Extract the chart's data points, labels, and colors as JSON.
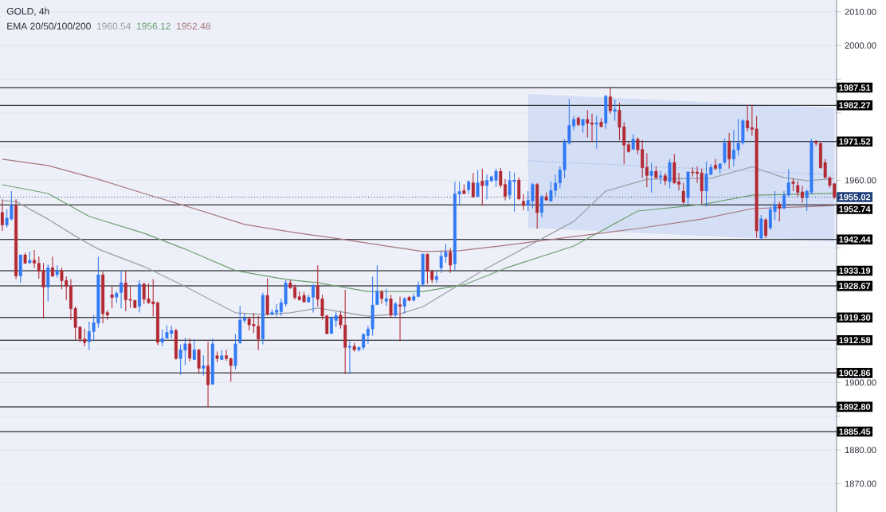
{
  "chart_data": {
    "type": "candlestick",
    "title": "GOLD, 4h",
    "subtitle": "EMA 20/50/100/200",
    "categories": [
      null,
      null,
      null,
      null,
      null,
      null,
      null,
      null,
      null,
      null,
      null,
      null,
      null,
      null,
      null,
      null,
      null,
      null,
      null,
      null,
      null,
      null,
      null,
      null,
      null,
      null,
      null,
      null,
      null,
      null,
      null,
      null,
      null,
      null,
      null,
      null,
      null,
      null,
      null,
      null,
      null,
      null,
      null,
      null,
      null,
      null,
      null,
      null,
      null,
      null,
      null,
      null,
      null,
      null,
      null,
      null,
      null,
      null,
      null,
      null,
      null,
      null,
      null,
      null,
      null,
      null,
      null,
      null,
      null,
      null,
      null,
      null,
      null,
      null,
      null,
      null,
      null,
      null,
      null,
      null,
      null,
      null,
      null,
      null,
      null,
      null,
      null,
      null,
      null,
      null,
      null,
      null,
      null,
      null,
      null,
      null,
      null,
      null,
      null,
      null,
      null,
      null,
      null,
      null,
      null,
      null,
      null,
      null,
      null,
      null,
      null,
      null,
      null,
      null,
      null,
      null,
      null,
      null,
      null,
      null,
      null,
      null,
      null,
      null,
      null,
      null,
      null,
      null,
      null,
      null,
      null,
      null,
      null,
      null,
      null,
      null,
      null,
      null,
      null,
      null,
      null,
      null,
      null,
      null,
      null,
      null,
      null,
      null,
      null,
      null,
      null,
      null,
      null,
      null,
      null,
      null,
      null,
      null,
      null,
      null,
      null,
      null,
      null,
      null,
      null,
      null,
      null,
      null,
      null,
      null,
      null,
      null,
      null,
      null,
      null,
      null,
      null,
      null,
      null,
      null,
      null,
      null,
      null
    ],
    "ohlc": [
      [
        1950.5,
        1954.4,
        1945,
        1946.7
      ],
      [
        1946.7,
        1951.4,
        1946,
        1948.8
      ],
      [
        1948.5,
        1956.8,
        1948.1,
        1952.5
      ],
      [
        1952.5,
        1954.4,
        1930.7,
        1931.6
      ],
      [
        1931.6,
        1938,
        1929.5,
        1937.9
      ],
      [
        1937.9,
        1938.5,
        1935.2,
        1935.4
      ],
      [
        1935.5,
        1938.9,
        1935.2,
        1936.3
      ],
      [
        1936.3,
        1939.3,
        1934,
        1935.4
      ],
      [
        1935.4,
        1937.4,
        1930.8,
        1933
      ],
      [
        1933.2,
        1935.5,
        1919,
        1928.3
      ],
      [
        1928.3,
        1935.1,
        1924.1,
        1934.1
      ],
      [
        1934.1,
        1937.3,
        1931.5,
        1931.5
      ],
      [
        1932,
        1934.8,
        1931.2,
        1933.2
      ],
      [
        1933.2,
        1934.1,
        1927.7,
        1930.2
      ],
      [
        1930.3,
        1931.5,
        1924.5,
        1928.5
      ],
      [
        1928.6,
        1930.7,
        1918.6,
        1921.9
      ],
      [
        1922,
        1922.6,
        1912.6,
        1916.3
      ],
      [
        1916.5,
        1916.7,
        1912,
        1912.9
      ],
      [
        1912.9,
        1916,
        1910.8,
        1911.8
      ],
      [
        1912.1,
        1918.1,
        1909.7,
        1915.2
      ],
      [
        1915.1,
        1920,
        1912.3,
        1917.8
      ],
      [
        1917.6,
        1937.3,
        1916.3,
        1932
      ],
      [
        1932,
        1933,
        1917.6,
        1920.4
      ],
      [
        1920.8,
        1921.5,
        1918.6,
        1920
      ],
      [
        1926.1,
        1928.5,
        1922,
        1925.2
      ],
      [
        1925.3,
        1927.1,
        1923.6,
        1926.5
      ],
      [
        1926.7,
        1933.2,
        1922,
        1929.6
      ],
      [
        1929.6,
        1933.2,
        1921.2,
        1924.5
      ],
      [
        1924.7,
        1928.5,
        1922.2,
        1924.4
      ],
      [
        1924.4,
        1924.5,
        1922,
        1922.2
      ],
      [
        1922.6,
        1930.4,
        1920.8,
        1929.2
      ],
      [
        1929.3,
        1929.6,
        1923.3,
        1924.7
      ],
      [
        1924.9,
        1929.4,
        1923.3,
        1923.7
      ],
      [
        1924,
        1930.7,
        1919.6,
        1923.3
      ],
      [
        1923.7,
        1924.1,
        1911.1,
        1911.9
      ],
      [
        1911.9,
        1915.7,
        1910.8,
        1913.1
      ],
      [
        1913.1,
        1917,
        1913.1,
        1914.9
      ],
      [
        1914.5,
        1916.8,
        1913.1,
        1915.5
      ],
      [
        1915.5,
        1916,
        1906.8,
        1907.1
      ],
      [
        1907.1,
        1911.3,
        1902.3,
        1909.7
      ],
      [
        1909.6,
        1913.3,
        1905.2,
        1911.5
      ],
      [
        1911.5,
        1913.1,
        1906.3,
        1907.2
      ],
      [
        1906.8,
        1912.9,
        1906.8,
        1909.7
      ],
      [
        1909.7,
        1910,
        1902.5,
        1904.2
      ],
      [
        1904.2,
        1908.1,
        1902.1,
        1905
      ],
      [
        1905,
        1912.1,
        1892.8,
        1899.3
      ],
      [
        1899.5,
        1913.1,
        1899.3,
        1911.5
      ],
      [
        1908,
        1909.2,
        1906,
        1907.1
      ],
      [
        1906.8,
        1909.6,
        1906.8,
        1908
      ],
      [
        1908,
        1909.7,
        1906.4,
        1907.1
      ],
      [
        1907.1,
        1907.4,
        1900.3,
        1905
      ],
      [
        1905,
        1914.4,
        1903.9,
        1911.5
      ],
      [
        1911.8,
        1922.8,
        1911.5,
        1918.6
      ],
      [
        1918.4,
        1920.4,
        1917.6,
        1919.2
      ],
      [
        1918.9,
        1919.6,
        1915.5,
        1917.1
      ],
      [
        1917.3,
        1920.6,
        1914.7,
        1916.8
      ],
      [
        1916.7,
        1919.8,
        1909.7,
        1912.9
      ],
      [
        1912.9,
        1926.7,
        1911.3,
        1925.9
      ],
      [
        1925.9,
        1931,
        1919.9,
        1920.2
      ],
      [
        1920.2,
        1921.8,
        1920,
        1920.8
      ],
      [
        1920.8,
        1923.3,
        1919.6,
        1921.5
      ],
      [
        1921,
        1924.9,
        1919.8,
        1923.7
      ],
      [
        1923.3,
        1930.4,
        1922.6,
        1929.6
      ],
      [
        1929.6,
        1930.4,
        1927.8,
        1928.1
      ],
      [
        1928.3,
        1929.1,
        1924.7,
        1925.2
      ],
      [
        1925.5,
        1927.1,
        1924.4,
        1924.5
      ],
      [
        1925.9,
        1926.9,
        1923.7,
        1923.9
      ],
      [
        1923.9,
        1926.1,
        1923.7,
        1925.3
      ],
      [
        1925.3,
        1929.1,
        1920.8,
        1928.9
      ],
      [
        1928.9,
        1934.8,
        1922.6,
        1924.7
      ],
      [
        1924.9,
        1926.1,
        1918.6,
        1919.7
      ],
      [
        1919.8,
        1920.2,
        1914.3,
        1914.5
      ],
      [
        1914.5,
        1919.6,
        1914.5,
        1919.4
      ],
      [
        1918.4,
        1921,
        1916.5,
        1919.9
      ],
      [
        1920,
        1921.2,
        1916,
        1917.1
      ],
      [
        1917.1,
        1927.5,
        1902.5,
        1910.4
      ],
      [
        1910.4,
        1912.3,
        1902.6,
        1910.8
      ],
      [
        1910.8,
        1911.8,
        1909.2,
        1909.7
      ],
      [
        1909.7,
        1910.8,
        1909.2,
        1910.4
      ],
      [
        1910.4,
        1914.7,
        1909.6,
        1914.3
      ],
      [
        1913.9,
        1916.8,
        1911.5,
        1915.9
      ],
      [
        1915.9,
        1931.4,
        1913.9,
        1923
      ],
      [
        1923.1,
        1934.8,
        1923,
        1927.1
      ],
      [
        1926.9,
        1927.5,
        1923.4,
        1924.9
      ],
      [
        1924.1,
        1927.8,
        1922.8,
        1924.9
      ],
      [
        1924.9,
        1926.1,
        1919.2,
        1920
      ],
      [
        1920,
        1923.9,
        1919.2,
        1923.4
      ],
      [
        1923.1,
        1925.5,
        1912.3,
        1922.6
      ],
      [
        1922.6,
        1925.3,
        1920.4,
        1924.9
      ],
      [
        1925.3,
        1925.7,
        1924.1,
        1924.4
      ],
      [
        1924.4,
        1926.5,
        1924.1,
        1925.5
      ],
      [
        1925.5,
        1930,
        1925.3,
        1928.9
      ],
      [
        1929.1,
        1938.3,
        1928.6,
        1938.1
      ],
      [
        1938.1,
        1938.3,
        1929.3,
        1933
      ],
      [
        1933,
        1933.5,
        1929.5,
        1930.5
      ],
      [
        1930.5,
        1933,
        1929.5,
        1931.5
      ],
      [
        1934,
        1939.1,
        1932.5,
        1937.5
      ],
      [
        1937.3,
        1941.1,
        1935.6,
        1938.7
      ],
      [
        1938.7,
        1939.9,
        1932.5,
        1934.8
      ],
      [
        1935.2,
        1959.6,
        1933.2,
        1956
      ],
      [
        1955.9,
        1959.6,
        1952.5,
        1956.7
      ],
      [
        1957,
        1958.8,
        1955.9,
        1956
      ],
      [
        1957.2,
        1960,
        1955.9,
        1959.6
      ],
      [
        1959.3,
        1962.2,
        1954.8,
        1955.1
      ],
      [
        1955.2,
        1963,
        1955.1,
        1959.3
      ],
      [
        1959.8,
        1963.5,
        1952.5,
        1958.4
      ],
      [
        1958.4,
        1961.7,
        1954.3,
        1960
      ],
      [
        1959.8,
        1961.4,
        1959.6,
        1961.1
      ],
      [
        1960,
        1963.5,
        1958,
        1962.7
      ],
      [
        1962.7,
        1963.7,
        1957.8,
        1958.5
      ],
      [
        1958.8,
        1960.4,
        1954.1,
        1955.2
      ],
      [
        1955.6,
        1962.7,
        1954.3,
        1960
      ],
      [
        1959.6,
        1962.3,
        1950.7,
        1960.1
      ],
      [
        1960.1,
        1960.9,
        1954.1,
        1954.5
      ],
      [
        1953.8,
        1955.9,
        1951.1,
        1952.5
      ],
      [
        1952.5,
        1956.8,
        1950.9,
        1954.1
      ],
      [
        1953.8,
        1959.2,
        1951.7,
        1958.8
      ],
      [
        1958.8,
        1959.2,
        1945.6,
        1950.4
      ],
      [
        1950.4,
        1955.6,
        1949,
        1955.2
      ],
      [
        1955.2,
        1956.4,
        1954.1,
        1954.1
      ],
      [
        1953.8,
        1959.6,
        1953.7,
        1957
      ],
      [
        1957,
        1961.7,
        1955.2,
        1959.2
      ],
      [
        1959.2,
        1964.1,
        1957.6,
        1963.1
      ],
      [
        1963.1,
        1972.2,
        1960.7,
        1971.4
      ],
      [
        1971,
        1984.2,
        1970.6,
        1976.3
      ],
      [
        1976.1,
        1979,
        1974.9,
        1978.1
      ],
      [
        1978.5,
        1978.9,
        1976.1,
        1976.5
      ],
      [
        1976.3,
        1978.2,
        1974.1,
        1978.1
      ],
      [
        1978.1,
        1980.8,
        1972.7,
        1976.9
      ],
      [
        1977.1,
        1979.8,
        1971.4,
        1976.6
      ],
      [
        1976.6,
        1979.2,
        1969.4,
        1977.1
      ],
      [
        1977.3,
        1978.5,
        1975.7,
        1975.9
      ],
      [
        1976.9,
        1985.3,
        1975.3,
        1985
      ],
      [
        1984.8,
        1987.5,
        1979.8,
        1980.6
      ],
      [
        1980.4,
        1984,
        1977.7,
        1981
      ],
      [
        1980.8,
        1983,
        1971.9,
        1975.7
      ],
      [
        1975.9,
        1977.3,
        1964.8,
        1970.4
      ],
      [
        1970.6,
        1971.4,
        1968.2,
        1968.5
      ],
      [
        1969.2,
        1973.7,
        1969,
        1972.2
      ],
      [
        1972.2,
        1972.7,
        1967.7,
        1969
      ],
      [
        1969.2,
        1971.9,
        1960.7,
        1963.7
      ],
      [
        1963.9,
        1968,
        1958,
        1961.4
      ],
      [
        1961.4,
        1965.2,
        1956.4,
        1962.7
      ],
      [
        1962.7,
        1964.1,
        1960.6,
        1960.7
      ],
      [
        1960.9,
        1962.7,
        1958.8,
        1961.4
      ],
      [
        1961.4,
        1962.2,
        1958.5,
        1959.8
      ],
      [
        1959.6,
        1966.3,
        1957.6,
        1965.3
      ],
      [
        1965.3,
        1967.8,
        1959,
        1959.2
      ],
      [
        1959.6,
        1962.2,
        1957,
        1958.8
      ],
      [
        1956.8,
        1959.2,
        1953,
        1953.5
      ],
      [
        1954.8,
        1962.7,
        1952.9,
        1962.5
      ],
      [
        1962.5,
        1963.9,
        1961.1,
        1962.2
      ],
      [
        1962.5,
        1964.1,
        1959.2,
        1962
      ],
      [
        1962.2,
        1963.5,
        1952.9,
        1956.8
      ],
      [
        1956.8,
        1965.5,
        1952.2,
        1961.9
      ],
      [
        1961.7,
        1964.8,
        1961.7,
        1963.9
      ],
      [
        1964.5,
        1966.3,
        1963.1,
        1963.5
      ],
      [
        1963.5,
        1965.1,
        1962,
        1964.9
      ],
      [
        1965.3,
        1972.4,
        1964.8,
        1971.1
      ],
      [
        1971.4,
        1974.1,
        1963.5,
        1966.3
      ],
      [
        1966.3,
        1974.9,
        1964.1,
        1969
      ],
      [
        1969,
        1978.2,
        1967.4,
        1971.1
      ],
      [
        1971.1,
        1978.2,
        1970.6,
        1977.7
      ],
      [
        1977.7,
        1982.4,
        1974.5,
        1975.5
      ],
      [
        1975.7,
        1982.4,
        1973.2,
        1975.1
      ],
      [
        1975.3,
        1979,
        1943,
        1945
      ],
      [
        1942.8,
        1949.7,
        1942.3,
        1948.6
      ],
      [
        1948.3,
        1948.8,
        1942.8,
        1943.6
      ],
      [
        1945.9,
        1952.2,
        1945.2,
        1951.3
      ],
      [
        1950.7,
        1956.8,
        1948.2,
        1952.9
      ],
      [
        1952.9,
        1953.7,
        1947.8,
        1951.7
      ],
      [
        1951.7,
        1956.8,
        1951.5,
        1955.6
      ],
      [
        1955.6,
        1963.3,
        1955.1,
        1959.3
      ],
      [
        1959.6,
        1960.7,
        1956.8,
        1959
      ],
      [
        1958.5,
        1959.8,
        1955.2,
        1956.4
      ],
      [
        1956.6,
        1958.4,
        1953.3,
        1954.8
      ],
      [
        1954.8,
        1957.2,
        1950.9,
        1956.8
      ],
      [
        1956.4,
        1972.2,
        1956,
        1971.4
      ],
      [
        1971.6,
        1971.9,
        1970.2,
        1971
      ],
      [
        1971,
        1971.1,
        1963.5,
        1963.7
      ],
      [
        1965.3,
        1966.3,
        1960.6,
        1960.8
      ],
      [
        1960.8,
        1961.2,
        1957.8,
        1958.5
      ],
      [
        1959,
        1959.2,
        1954.4,
        1955
      ]
    ],
    "series": [
      {
        "type": "line",
        "line_style": "dotted",
        "color": "#8eaae6",
        "values": [
          null,
          null,
          null,
          null,
          null,
          null,
          null,
          null,
          null,
          null,
          null,
          null,
          null,
          null,
          null,
          null,
          null,
          null,
          null,
          null,
          null,
          null,
          null,
          null,
          null,
          null,
          null,
          null,
          null,
          null,
          null,
          null,
          null,
          null,
          null,
          null,
          null,
          null,
          null,
          null,
          null,
          null,
          null,
          null,
          null,
          null,
          null,
          null,
          null,
          null,
          null,
          null,
          null,
          null,
          null,
          null,
          null,
          null,
          null,
          null,
          null,
          null,
          null,
          null,
          null,
          null,
          null,
          null,
          null,
          null,
          null,
          null,
          null,
          null,
          null,
          null,
          null,
          null,
          null,
          null,
          null,
          null,
          null,
          null,
          null,
          null,
          null,
          null,
          null,
          null,
          null,
          null,
          null,
          null,
          null,
          null,
          null,
          null,
          null,
          null,
          null,
          null,
          null,
          null,
          null,
          null,
          null,
          null,
          null,
          null,
          null,
          null,
          null,
          null,
          null,
          1965.8,
          null,
          null,
          null,
          null,
          null,
          null,
          null,
          null,
          null,
          null,
          null,
          null,
          null,
          null,
          null,
          null,
          null,
          null,
          null,
          null,
          null,
          null,
          null,
          null,
          null,
          null,
          null,
          null,
          null,
          null,
          null,
          null,
          null,
          null,
          null,
          null,
          null,
          null,
          null,
          null,
          null,
          null,
          null,
          null,
          null,
          null,
          null,
          null,
          null,
          null,
          null,
          null,
          null,
          null,
          null,
          null,
          null,
          null,
          null,
          null,
          null,
          null,
          null,
          null,
          null,
          null,
          1961.6
        ],
        "lower": [
          null,
          null,
          null,
          null,
          null,
          null,
          null,
          null,
          null,
          null,
          null,
          null,
          null,
          null,
          null,
          null,
          null,
          null,
          null,
          null,
          null,
          null,
          null,
          null,
          null,
          null,
          null,
          null,
          null,
          null,
          null,
          null,
          null,
          null,
          null,
          null,
          null,
          null,
          null,
          null,
          null,
          null,
          null,
          null,
          null,
          null,
          null,
          null,
          null,
          null,
          null,
          null,
          null,
          null,
          null,
          null,
          null,
          null,
          null,
          null,
          null,
          null,
          null,
          null,
          null,
          null,
          null,
          null,
          null,
          null,
          null,
          null,
          null,
          null,
          null,
          null,
          null,
          null,
          null,
          null,
          null,
          null,
          null,
          null,
          null,
          null,
          null,
          null,
          null,
          null,
          null,
          null,
          null,
          null,
          null,
          null,
          null,
          null,
          null,
          null,
          null,
          null,
          null,
          null,
          null,
          null,
          null,
          null,
          null,
          null,
          null,
          null,
          null,
          null,
          null,
          1945.9,
          null,
          null,
          null,
          null,
          null,
          null,
          null,
          null,
          null,
          null,
          null,
          null,
          null,
          null,
          null,
          null,
          null,
          null,
          null,
          null,
          null,
          null,
          null,
          null,
          null,
          null,
          null,
          null,
          null,
          null,
          null,
          null,
          null,
          null,
          null,
          null,
          null,
          null,
          null,
          null,
          null,
          null,
          null,
          null,
          null,
          null,
          null,
          null,
          null,
          null,
          null,
          null,
          null,
          null,
          null,
          null,
          null,
          null,
          null,
          null,
          null,
          null,
          null,
          null,
          null,
          null,
          1941.8
        ],
        "upper": [
          null,
          null,
          null,
          null,
          null,
          null,
          null,
          null,
          null,
          null,
          null,
          null,
          null,
          null,
          null,
          null,
          null,
          null,
          null,
          null,
          null,
          null,
          null,
          null,
          null,
          null,
          null,
          null,
          null,
          null,
          null,
          null,
          null,
          null,
          null,
          null,
          null,
          null,
          null,
          null,
          null,
          null,
          null,
          null,
          null,
          null,
          null,
          null,
          null,
          null,
          null,
          null,
          null,
          null,
          null,
          null,
          null,
          null,
          null,
          null,
          null,
          null,
          null,
          null,
          null,
          null,
          null,
          null,
          null,
          null,
          null,
          null,
          null,
          null,
          null,
          null,
          null,
          null,
          null,
          null,
          null,
          null,
          null,
          null,
          null,
          null,
          null,
          null,
          null,
          null,
          null,
          null,
          null,
          null,
          null,
          null,
          null,
          null,
          null,
          null,
          null,
          null,
          null,
          null,
          null,
          null,
          null,
          null,
          null,
          null,
          null,
          null,
          null,
          null,
          null,
          1985.6,
          null,
          null,
          null,
          null,
          null,
          null,
          null,
          null,
          null,
          null,
          null,
          null,
          null,
          null,
          null,
          null,
          null,
          null,
          null,
          null,
          null,
          null,
          null,
          null,
          null,
          null,
          null,
          null,
          null,
          null,
          null,
          null,
          null,
          null,
          null,
          null,
          null,
          null,
          null,
          null,
          null,
          null,
          null,
          null,
          null,
          null,
          null,
          null,
          null,
          null,
          null,
          null,
          null,
          null,
          null,
          null,
          null,
          null,
          null,
          null,
          null,
          null,
          null,
          null,
          null,
          null,
          1981.5
        ]
      },
      {
        "type": "line",
        "name": "1960.54",
        "color": "#9a9da3",
        "values": [
          1954,
          null,
          null,
          1953.7,
          null,
          null,
          null,
          null,
          null,
          null,
          1948.5,
          null,
          null,
          null,
          null,
          null,
          null,
          1942.6,
          null,
          null,
          null,
          1939.6,
          null,
          null,
          null,
          null,
          null,
          null,
          null,
          null,
          null,
          1934.4,
          null,
          null,
          null,
          null,
          null,
          null,
          null,
          null,
          1928.5,
          null,
          null,
          null,
          null,
          null,
          null,
          null,
          null,
          null,
          null,
          1920.7,
          null,
          null,
          null,
          null,
          null,
          1920.2,
          null,
          null,
          null,
          null,
          null,
          1920.7,
          null,
          null,
          null,
          null,
          null,
          1922.1,
          null,
          null,
          null,
          null,
          null,
          null,
          null,
          null,
          null,
          null,
          1919.7,
          null,
          null,
          null,
          null,
          null,
          null,
          1920.4,
          null,
          null,
          null,
          null,
          1922.5,
          null,
          null,
          null,
          null,
          null,
          null,
          null,
          null,
          null,
          null,
          null,
          null,
          1933.2,
          null,
          null,
          null,
          null,
          null,
          null,
          null,
          null,
          null,
          null,
          null,
          null,
          null,
          null,
          null,
          null,
          null,
          null,
          null,
          1947.8,
          null,
          null,
          null,
          null,
          null,
          null,
          1956.8,
          null,
          null,
          null,
          null,
          null,
          null,
          null,
          null,
          1960.3,
          null,
          null,
          null,
          null,
          null,
          null,
          null,
          null,
          null,
          null,
          null,
          null,
          null,
          1960.6,
          null,
          null,
          null,
          null,
          null,
          null,
          null,
          null,
          1964,
          null,
          null,
          null,
          null,
          null,
          null,
          1960.8,
          null,
          null,
          null,
          null,
          1959.9,
          null,
          null,
          null,
          null,
          null,
          1960.5
        ]
      },
      {
        "type": "line",
        "name": "1956.12",
        "color": "#6d9f71",
        "values": [
          1958.7,
          null,
          null,
          null,
          null,
          null,
          null,
          null,
          null,
          null,
          1956.1,
          null,
          null,
          null,
          null,
          null,
          null,
          null,
          null,
          1949.3,
          null,
          null,
          null,
          null,
          null,
          null,
          null,
          null,
          null,
          null,
          null,
          1944.3,
          null,
          null,
          null,
          null,
          null,
          null,
          null,
          null,
          1939.6,
          null,
          null,
          null,
          null,
          null,
          null,
          null,
          null,
          null,
          null,
          1933.2,
          null,
          null,
          null,
          null,
          null,
          null,
          null,
          null,
          null,
          null,
          1930.6,
          null,
          null,
          null,
          null,
          null,
          null,
          1929.6,
          null,
          null,
          null,
          null,
          null,
          null,
          null,
          null,
          null,
          null,
          1927,
          null,
          null,
          null,
          null,
          null,
          null,
          null,
          null,
          null,
          null,
          null,
          1927,
          null,
          null,
          null,
          null,
          null,
          null,
          null,
          null,
          1929,
          null,
          null,
          null,
          null,
          null,
          null,
          null,
          null,
          1933.9,
          null,
          null,
          null,
          null,
          null,
          null,
          null,
          null,
          null,
          null,
          null,
          null,
          null,
          null,
          1940.5,
          null,
          null,
          null,
          null,
          null,
          null,
          null,
          null,
          null,
          null,
          null,
          null,
          null,
          1950.9,
          null,
          null,
          null,
          null,
          null,
          null,
          null,
          null,
          null,
          null,
          null,
          null,
          null,
          1952.8,
          null,
          null,
          null,
          null,
          null,
          null,
          null,
          null,
          null,
          null,
          1955.6,
          null,
          null,
          null,
          null,
          null,
          null,
          null,
          null,
          null,
          null,
          null,
          null,
          null,
          null,
          null,
          null,
          null,
          1956.1
        ]
      },
      {
        "type": "line",
        "name": "1952.48",
        "color": "#a8767e",
        "values": [
          1966.3,
          null,
          null,
          null,
          null,
          null,
          null,
          null,
          null,
          null,
          1964.4,
          null,
          null,
          null,
          null,
          null,
          null,
          null,
          null,
          null,
          null,
          1960.3,
          null,
          null,
          null,
          null,
          null,
          null,
          null,
          null,
          null,
          1956.1,
          null,
          null,
          null,
          null,
          null,
          null,
          null,
          null,
          null,
          null,
          1951.6,
          null,
          null,
          null,
          null,
          null,
          null,
          null,
          null,
          null,
          null,
          1946.9,
          null,
          null,
          null,
          null,
          null,
          null,
          null,
          null,
          null,
          null,
          1944.5,
          null,
          null,
          null,
          null,
          null,
          null,
          null,
          null,
          null,
          1942.6,
          null,
          null,
          null,
          null,
          null,
          null,
          null,
          null,
          null,
          null,
          1940.3,
          null,
          null,
          null,
          null,
          null,
          null,
          1938.9,
          null,
          null,
          null,
          null,
          null,
          null,
          null,
          1939.1,
          null,
          null,
          null,
          null,
          null,
          null,
          null,
          null,
          null,
          1940.7,
          null,
          null,
          null,
          null,
          null,
          null,
          null,
          null,
          null,
          null,
          null,
          null,
          null,
          null,
          1943.3,
          null,
          null,
          null,
          null,
          null,
          null,
          null,
          null,
          null,
          null,
          null,
          null,
          null,
          1945.7,
          null,
          null,
          null,
          null,
          null,
          null,
          null,
          null,
          null,
          null,
          null,
          null,
          null,
          1948.5,
          null,
          null,
          null,
          null,
          null,
          null,
          null,
          null,
          null,
          null,
          1951.6,
          null,
          null,
          null,
          null,
          null,
          null,
          null,
          null,
          null,
          null,
          null,
          null,
          null,
          null,
          null,
          null,
          null,
          1952.5
        ]
      }
    ],
    "ref_lines": [
      {
        "axis": "y",
        "value": 1987.51,
        "label": "1987.51",
        "color": "#000000"
      },
      {
        "axis": "y",
        "value": 1982.27,
        "label": "1982.27",
        "color": "#000000"
      },
      {
        "axis": "y",
        "value": 1971.52,
        "label": "1971.52",
        "color": "#000000"
      },
      {
        "axis": "y",
        "value": 1955.02,
        "label": "1955.02",
        "color": "#1f3f7a",
        "line_style": "dotted"
      },
      {
        "axis": "y",
        "value": 1952.74,
        "label": "1952.74",
        "color": "#000000"
      },
      {
        "axis": "y",
        "value": 1942.44,
        "label": "1942.44",
        "color": "#000000"
      },
      {
        "axis": "y",
        "value": 1933.19,
        "label": "1933.19",
        "color": "#000000"
      },
      {
        "axis": "y",
        "value": 1928.67,
        "label": "1928.67",
        "color": "#000000"
      },
      {
        "axis": "y",
        "value": 1919.3,
        "label": "1919.30",
        "color": "#000000"
      },
      {
        "axis": "y",
        "value": 1912.58,
        "label": "1912.58",
        "color": "#000000"
      },
      {
        "axis": "y",
        "value": 1902.86,
        "label": "1902.86",
        "color": "#000000"
      },
      {
        "axis": "y",
        "value": 1892.8,
        "label": "1892.80",
        "color": "#000000"
      },
      {
        "axis": "y",
        "value": 1885.45,
        "label": "1885.45",
        "color": "#000000"
      }
    ],
    "ylim": [
      1861.6,
      2013.5
    ],
    "yticks": [
      {
        "value": 1870,
        "label": "1870.00"
      },
      {
        "value": 1880,
        "label": "1880.00"
      },
      {
        "value": 1890,
        "label": null
      },
      {
        "value": 1900,
        "label": "1900.00"
      },
      {
        "value": 1910,
        "label": null
      },
      {
        "value": 1920,
        "label": null
      },
      {
        "value": 1930,
        "label": null
      },
      {
        "value": 1940,
        "label": null
      },
      {
        "value": 1950,
        "label": null
      },
      {
        "value": 1960,
        "label": "1960.00"
      },
      {
        "value": 1970,
        "label": null
      },
      {
        "value": 1980,
        "label": null
      },
      {
        "value": 1990,
        "label": null
      },
      {
        "value": 2000,
        "label": "2000.00"
      },
      {
        "value": 2010,
        "label": "2010.00"
      }
    ],
    "grid": "y"
  }
}
